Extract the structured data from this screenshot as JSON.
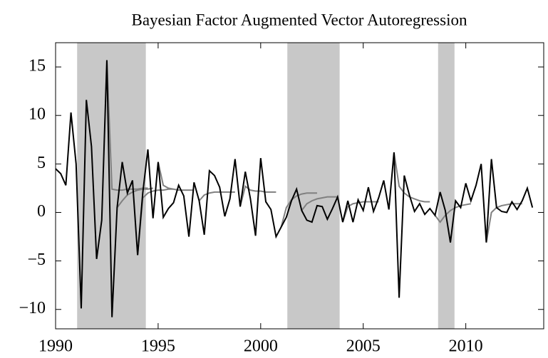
{
  "chart_data": {
    "type": "line",
    "title": "Bayesian Factor Augmented Vector Autoregression",
    "xlim": [
      1990,
      2013.8
    ],
    "xticks": [
      1990,
      1995,
      2000,
      2005,
      2010
    ],
    "ylim": [
      -12,
      17.5
    ],
    "yticks": [
      {
        "value": -10,
        "label": "−10"
      },
      {
        "value": -5,
        "label": "−5"
      },
      0,
      5,
      10,
      15
    ],
    "shaded_regions": [
      [
        1991.05,
        1994.4
      ],
      [
        2001.3,
        2003.85
      ],
      [
        2008.65,
        2009.45
      ]
    ],
    "shade_color": "#c8c8c8",
    "series": [
      {
        "color": "#808080",
        "x": [
          1992.5,
          1992.75,
          1993.0,
          1993.25,
          1993.5,
          1993.75,
          1994.0,
          1994.25,
          1994.5
        ],
        "values": [
          15.7,
          2.4,
          2.3,
          2.3,
          2.4,
          2.4,
          2.4,
          2.5,
          2.5
        ]
      },
      {
        "color": "#808080",
        "x": [
          1993.0,
          1993.25,
          1993.5,
          1993.75,
          1994.0,
          1994.25,
          1994.5,
          1994.75
        ],
        "values": [
          0.5,
          1.2,
          1.8,
          2.1,
          2.3,
          2.4,
          2.4,
          2.5
        ]
      },
      {
        "color": "#808080",
        "x": [
          1994.0,
          1994.25,
          1994.5,
          1994.75,
          1995.0,
          1995.25,
          1995.5,
          1995.75
        ],
        "values": [
          -4.4,
          1.5,
          2.0,
          2.2,
          2.3,
          2.3,
          2.4,
          2.4
        ]
      },
      {
        "color": "#808080",
        "x": [
          1995.0,
          1995.25,
          1995.5,
          1995.75,
          1996.0,
          1996.25,
          1996.5,
          1996.75
        ],
        "values": [
          5.2,
          2.8,
          2.5,
          2.4,
          2.3,
          2.3,
          2.3,
          2.3
        ]
      },
      {
        "color": "#808080",
        "x": [
          1997.0,
          1997.25,
          1997.5,
          1997.75,
          1998.0,
          1998.25,
          1998.5,
          1998.75
        ],
        "values": [
          1.2,
          1.8,
          2.0,
          2.1,
          2.1,
          2.1,
          2.1,
          2.1
        ]
      },
      {
        "color": "#808080",
        "x": [
          1999.0,
          1999.25,
          1999.5,
          1999.75,
          2000.0,
          2000.25,
          2000.5,
          2000.75
        ],
        "values": [
          0.6,
          2.7,
          2.3,
          2.2,
          2.2,
          2.1,
          2.1,
          2.1
        ]
      },
      {
        "color": "#808080",
        "x": [
          2001.0,
          2001.25,
          2001.5,
          2001.75,
          2002.0,
          2002.25,
          2002.5,
          2002.75
        ],
        "values": [
          -1.5,
          0.5,
          1.3,
          1.7,
          1.9,
          2.0,
          2.0,
          2.0
        ]
      },
      {
        "color": "#808080",
        "x": [
          2002.0,
          2002.25,
          2002.5,
          2002.75,
          2003.0,
          2003.25,
          2003.5,
          2003.75
        ],
        "values": [
          0.2,
          0.9,
          1.2,
          1.4,
          1.5,
          1.6,
          1.6,
          1.6
        ]
      },
      {
        "color": "#808080",
        "x": [
          2004.0,
          2004.25,
          2004.5,
          2004.75,
          2005.0,
          2005.25,
          2005.5,
          2005.75
        ],
        "values": [
          -1.0,
          0.6,
          0.9,
          1.0,
          1.1,
          1.1,
          1.1,
          1.1
        ]
      },
      {
        "color": "#808080",
        "x": [
          2006.5,
          2006.75,
          2007.0,
          2007.25,
          2007.5,
          2007.75,
          2008.0,
          2008.25
        ],
        "values": [
          6.2,
          2.7,
          2.0,
          1.6,
          1.4,
          1.2,
          1.1,
          1.1
        ]
      },
      {
        "color": "#808080",
        "x": [
          2008.5,
          2008.75,
          2009.0,
          2009.25,
          2009.5,
          2009.75,
          2010.0,
          2010.25
        ],
        "values": [
          -0.3,
          -1.0,
          -0.3,
          0.2,
          0.5,
          0.7,
          0.8,
          0.9
        ]
      },
      {
        "color": "#808080",
        "x": [
          2011.0,
          2011.25,
          2011.5,
          2011.75,
          2012.0,
          2012.25,
          2012.5,
          2012.75
        ],
        "values": [
          -3.1,
          0.0,
          0.5,
          0.7,
          0.8,
          0.9,
          0.9,
          0.9
        ]
      },
      {
        "color": "#000000",
        "x": [
          1990.0,
          1990.25,
          1990.5,
          1990.75,
          1991.0,
          1991.25,
          1991.5,
          1991.75,
          1992.0,
          1992.25,
          1992.5,
          1992.75,
          1993.0,
          1993.25,
          1993.5,
          1993.75,
          1994.0,
          1994.25,
          1994.5,
          1994.75,
          1995.0,
          1995.25,
          1995.5,
          1995.75,
          1996.0,
          1996.25,
          1996.5,
          1996.75,
          1997.0,
          1997.25,
          1997.5,
          1997.75,
          1998.0,
          1998.25,
          1998.5,
          1998.75,
          1999.0,
          1999.25,
          1999.5,
          1999.75,
          2000.0,
          2000.25,
          2000.5,
          2000.75,
          2001.0,
          2001.25,
          2001.5,
          2001.75,
          2002.0,
          2002.25,
          2002.5,
          2002.75,
          2003.0,
          2003.25,
          2003.5,
          2003.75,
          2004.0,
          2004.25,
          2004.5,
          2004.75,
          2005.0,
          2005.25,
          2005.5,
          2005.75,
          2006.0,
          2006.25,
          2006.5,
          2006.75,
          2007.0,
          2007.25,
          2007.5,
          2007.75,
          2008.0,
          2008.25,
          2008.5,
          2008.75,
          2009.0,
          2009.25,
          2009.5,
          2009.75,
          2010.0,
          2010.25,
          2010.5,
          2010.75,
          2011.0,
          2011.25,
          2011.5,
          2011.75,
          2012.0,
          2012.25,
          2012.5,
          2012.75,
          2013.0,
          2013.25
        ],
        "values": [
          4.5,
          4.0,
          2.8,
          10.3,
          5.0,
          -9.9,
          11.6,
          6.8,
          -4.8,
          -0.8,
          15.7,
          -10.8,
          0.5,
          5.2,
          2.0,
          3.3,
          -4.4,
          2.0,
          6.5,
          -0.6,
          5.2,
          -0.5,
          0.4,
          1.0,
          2.8,
          1.7,
          -2.5,
          3.1,
          1.2,
          -2.3,
          4.3,
          3.8,
          2.6,
          -0.4,
          1.4,
          5.5,
          0.6,
          4.2,
          1.4,
          -2.4,
          5.6,
          1.1,
          0.3,
          -2.5,
          -1.5,
          -0.5,
          1.2,
          2.4,
          0.2,
          -0.8,
          -1.0,
          0.7,
          0.6,
          -0.7,
          0.4,
          1.6,
          -1.0,
          1.2,
          -1.0,
          1.3,
          0.2,
          2.6,
          0.1,
          1.5,
          3.3,
          0.3,
          6.2,
          -8.8,
          3.8,
          1.8,
          0.1,
          0.9,
          -0.2,
          0.4,
          -0.3,
          2.1,
          0.2,
          -3.1,
          1.2,
          0.5,
          3.0,
          1.2,
          2.8,
          5.0,
          -3.1,
          5.5,
          0.5,
          0.1,
          0.0,
          1.1,
          0.3,
          1.2,
          2.5,
          0.5
        ]
      }
    ]
  }
}
